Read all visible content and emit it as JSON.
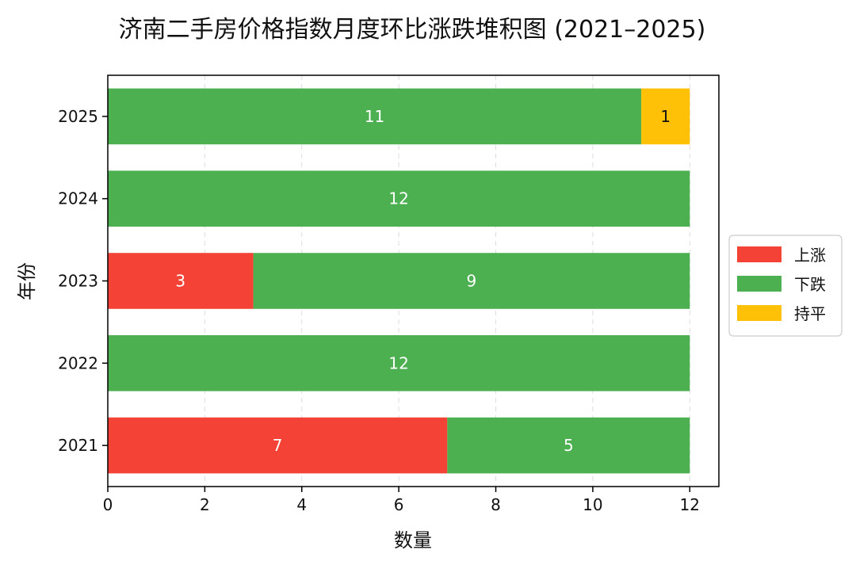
{
  "chart_data": {
    "type": "bar",
    "orientation": "horizontal",
    "stacked": true,
    "title": "济南二手房价格指数月度环比涨跌堆积图 (2021–2025)",
    "xlabel": "数量",
    "ylabel": "年份",
    "categories": [
      "2021",
      "2022",
      "2023",
      "2024",
      "2025"
    ],
    "series": [
      {
        "name": "上涨",
        "color": "#f44336",
        "values": [
          7,
          0,
          3,
          0,
          0
        ]
      },
      {
        "name": "下跌",
        "color": "#4caf50",
        "values": [
          5,
          12,
          9,
          12,
          11
        ]
      },
      {
        "name": "持平",
        "color": "#ffc107",
        "values": [
          0,
          0,
          0,
          0,
          1
        ]
      }
    ],
    "xlim": [
      0,
      12.6
    ],
    "xticks": [
      0,
      2,
      4,
      6,
      8,
      10,
      12
    ],
    "grid": "x-dashed",
    "legend": "right"
  }
}
